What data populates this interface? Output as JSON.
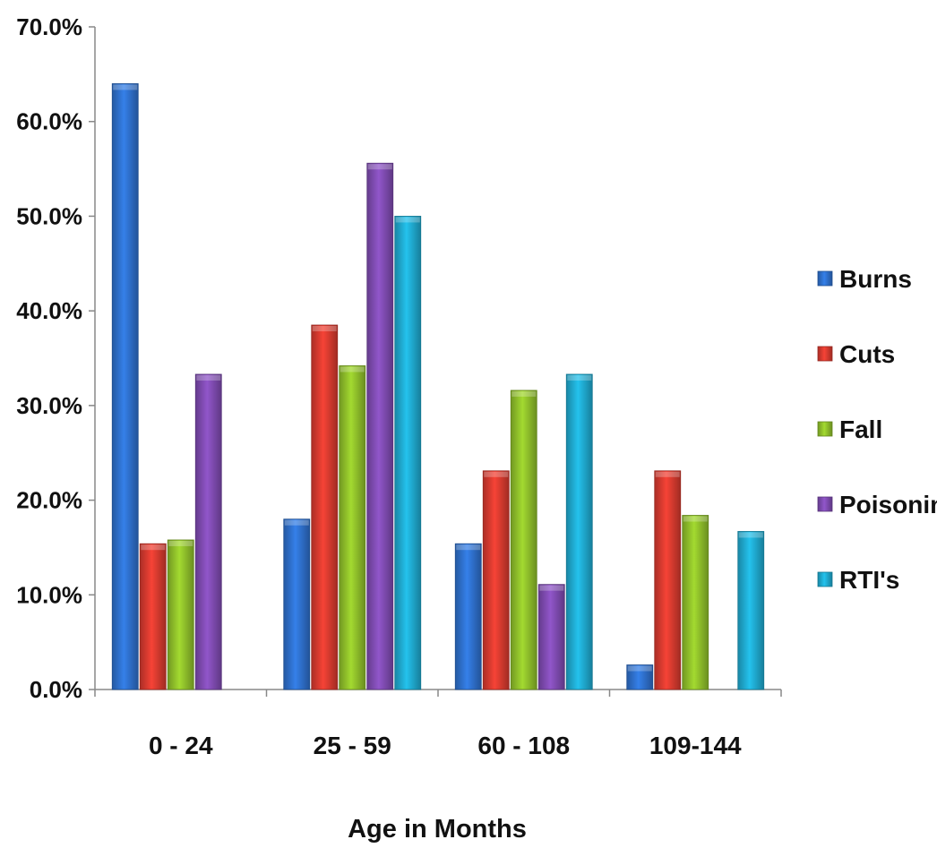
{
  "chart_data": {
    "type": "bar",
    "title": "",
    "xlabel": "Age in Months",
    "ylabel": "",
    "ylim": [
      0,
      70
    ],
    "yticks": [
      "0.0%",
      "10.0%",
      "20.0%",
      "30.0%",
      "40.0%",
      "50.0%",
      "60.0%",
      "70.0%"
    ],
    "grid": false,
    "legend_position": "right",
    "categories": [
      "0 - 24",
      "25 - 59",
      "60 - 108",
      "109-144"
    ],
    "series": [
      {
        "name": "Burns",
        "color": "#2E6FCB",
        "values": [
          64.0,
          18.0,
          15.4,
          2.6
        ]
      },
      {
        "name": "Cuts",
        "color": "#D63A2F",
        "values": [
          15.4,
          38.5,
          23.1,
          23.1
        ]
      },
      {
        "name": "Fall",
        "color": "#8EBE2A",
        "values": [
          15.8,
          34.2,
          31.6,
          18.4
        ]
      },
      {
        "name": "Poisoning",
        "color": "#7E4BB0",
        "values": [
          33.3,
          55.6,
          11.1,
          0
        ]
      },
      {
        "name": "RTI's",
        "color": "#1FA9CE",
        "values": [
          0,
          50.0,
          33.3,
          16.7
        ]
      }
    ]
  }
}
